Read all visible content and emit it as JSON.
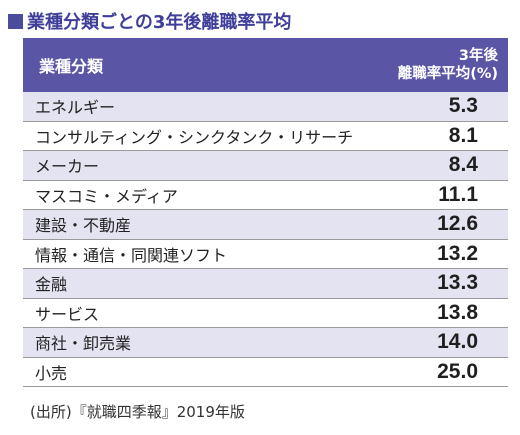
{
  "title": "業種分類ごとの3年後離職率平均",
  "table": {
    "header": {
      "category": "業種分類",
      "rate_line1": "3年後",
      "rate_line2": "離職率平均(%)"
    },
    "rows": [
      {
        "label": "エネルギー",
        "value": "5.3"
      },
      {
        "label": "コンサルティング・シンクタンク・リサーチ",
        "value": "8.1"
      },
      {
        "label": "メーカー",
        "value": "8.4"
      },
      {
        "label": "マスコミ・メディア",
        "value": "11.1"
      },
      {
        "label": "建設・不動産",
        "value": "12.6"
      },
      {
        "label": "情報・通信・同関連ソフト",
        "value": "13.2"
      },
      {
        "label": "金融",
        "value": "13.3"
      },
      {
        "label": "サービス",
        "value": "13.8"
      },
      {
        "label": "商社・卸売業",
        "value": "14.0"
      },
      {
        "label": "小売",
        "value": "25.0"
      }
    ]
  },
  "source": "(出所)『就職四季報』2019年版",
  "colors": {
    "header_bg": "#5b55a6",
    "alt_row_bg": "#e4e3f1",
    "title_color": "#3f3f9a"
  }
}
